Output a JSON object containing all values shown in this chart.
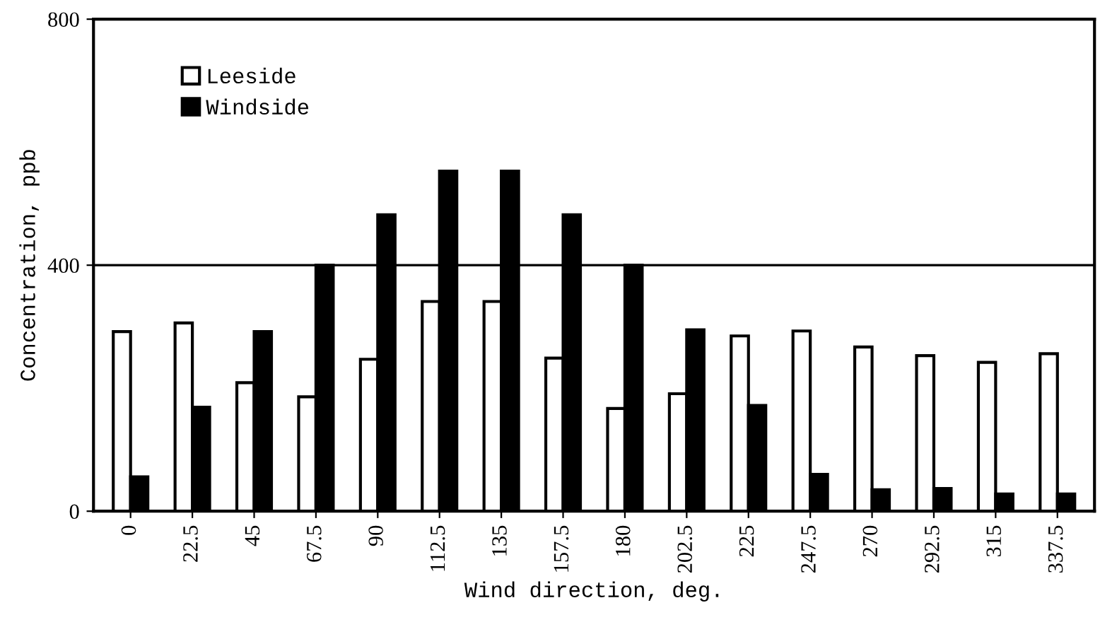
{
  "chart_data": {
    "type": "bar",
    "xlabel": "Wind direction, deg.",
    "ylabel": "Concentration, ppb",
    "categories": [
      "0",
      "22.5",
      "45",
      "67.5",
      "90",
      "112.5",
      "135",
      "157.5",
      "180",
      "202.5",
      "225",
      "247.5",
      "270",
      "292.5",
      "315",
      "337.5"
    ],
    "series": [
      {
        "name": "Leeside",
        "color": "#ffffff",
        "values": [
          292,
          306,
          209,
          186,
          247,
          341,
          341,
          249,
          167,
          191,
          285,
          293,
          267,
          253,
          242,
          256
        ]
      },
      {
        "name": "Windside",
        "color": "#000000",
        "values": [
          56,
          169,
          292,
          400,
          482,
          553,
          553,
          482,
          400,
          295,
          172,
          60,
          35,
          37,
          28,
          28
        ]
      }
    ],
    "ylim": [
      0,
      800
    ],
    "yticks": [
      0,
      400,
      800
    ],
    "grid": "y",
    "legend": "top left"
  }
}
